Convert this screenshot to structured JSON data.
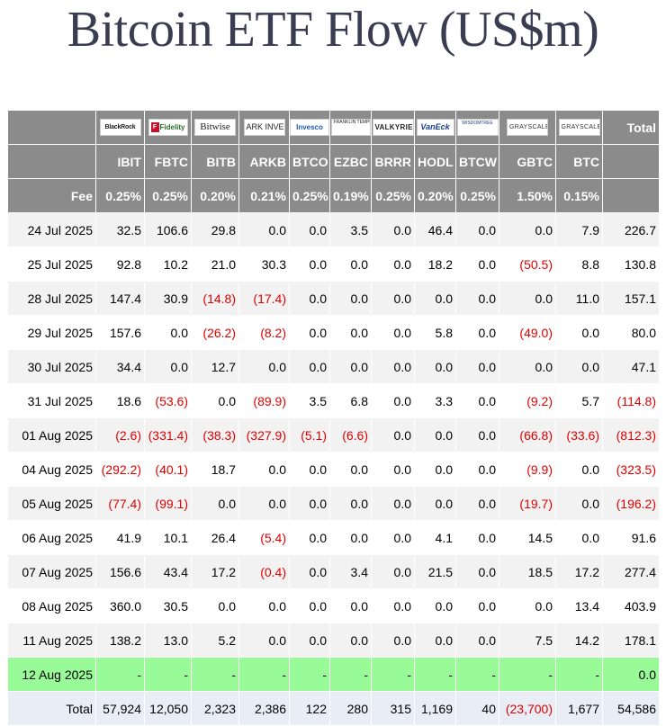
{
  "title": "Bitcoin ETF Flow (US$m)",
  "header": {
    "total_label": "Total",
    "fee_label": "Fee",
    "issuers": [
      {
        "icon": "blackrock-logo",
        "text": "BlackRock"
      },
      {
        "icon": "fidelity-logo",
        "text": "Fidelity"
      },
      {
        "icon": "bitwise-logo",
        "text": "Bitwise"
      },
      {
        "icon": "ark-invest-logo",
        "text": "ARK INVEST"
      },
      {
        "icon": "invesco-logo",
        "text": "Invesco"
      },
      {
        "icon": "franklin-templeton-logo",
        "text": "FRANKLIN TEMPLETON"
      },
      {
        "icon": "valkyrie-logo",
        "text": "VALKYRIE"
      },
      {
        "icon": "vaneck-logo",
        "text": "VanEck"
      },
      {
        "icon": "wisdomtree-logo",
        "text": "WISDOMTREE"
      },
      {
        "icon": "grayscale-logo",
        "text": "GRAYSCALE"
      },
      {
        "icon": "grayscale-logo",
        "text": "GRAYSCALE"
      }
    ],
    "tickers": [
      "IBIT",
      "FBTC",
      "BITB",
      "ARKB",
      "BTCO",
      "EZBC",
      "BRRR",
      "HODL",
      "BTCW",
      "GBTC",
      "BTC"
    ],
    "fees": [
      "0.25%",
      "0.25%",
      "0.20%",
      "0.21%",
      "0.25%",
      "0.19%",
      "0.25%",
      "0.20%",
      "0.25%",
      "1.50%",
      "0.15%"
    ]
  },
  "rows": [
    {
      "date": "24 Jul 2025",
      "values": [
        "32.5",
        "106.6",
        "29.8",
        "0.0",
        "0.0",
        "3.5",
        "0.0",
        "46.4",
        "0.0",
        "0.0",
        "7.9"
      ],
      "total": "226.7"
    },
    {
      "date": "25 Jul 2025",
      "values": [
        "92.8",
        "10.2",
        "21.0",
        "30.3",
        "0.0",
        "0.0",
        "0.0",
        "18.2",
        "0.0",
        "(50.5)",
        "8.8"
      ],
      "total": "130.8"
    },
    {
      "date": "28 Jul 2025",
      "values": [
        "147.4",
        "30.9",
        "(14.8)",
        "(17.4)",
        "0.0",
        "0.0",
        "0.0",
        "0.0",
        "0.0",
        "0.0",
        "11.0"
      ],
      "total": "157.1"
    },
    {
      "date": "29 Jul 2025",
      "values": [
        "157.6",
        "0.0",
        "(26.2)",
        "(8.2)",
        "0.0",
        "0.0",
        "0.0",
        "5.8",
        "0.0",
        "(49.0)",
        "0.0"
      ],
      "total": "80.0"
    },
    {
      "date": "30 Jul 2025",
      "values": [
        "34.4",
        "0.0",
        "12.7",
        "0.0",
        "0.0",
        "0.0",
        "0.0",
        "0.0",
        "0.0",
        "0.0",
        "0.0"
      ],
      "total": "47.1"
    },
    {
      "date": "31 Jul 2025",
      "values": [
        "18.6",
        "(53.6)",
        "0.0",
        "(89.9)",
        "3.5",
        "6.8",
        "0.0",
        "3.3",
        "0.0",
        "(9.2)",
        "5.7"
      ],
      "total": "(114.8)"
    },
    {
      "date": "01 Aug 2025",
      "values": [
        "(2.6)",
        "(331.4)",
        "(38.3)",
        "(327.9)",
        "(5.1)",
        "(6.6)",
        "0.0",
        "0.0",
        "0.0",
        "(66.8)",
        "(33.6)"
      ],
      "total": "(812.3)"
    },
    {
      "date": "04 Aug 2025",
      "values": [
        "(292.2)",
        "(40.1)",
        "18.7",
        "0.0",
        "0.0",
        "0.0",
        "0.0",
        "0.0",
        "0.0",
        "(9.9)",
        "0.0"
      ],
      "total": "(323.5)"
    },
    {
      "date": "05 Aug 2025",
      "values": [
        "(77.4)",
        "(99.1)",
        "0.0",
        "0.0",
        "0.0",
        "0.0",
        "0.0",
        "0.0",
        "0.0",
        "(19.7)",
        "0.0"
      ],
      "total": "(196.2)"
    },
    {
      "date": "06 Aug 2025",
      "values": [
        "41.9",
        "10.1",
        "26.4",
        "(5.4)",
        "0.0",
        "0.0",
        "0.0",
        "4.1",
        "0.0",
        "14.5",
        "0.0"
      ],
      "total": "91.6"
    },
    {
      "date": "07 Aug 2025",
      "values": [
        "156.6",
        "43.4",
        "17.2",
        "(0.4)",
        "0.0",
        "3.4",
        "0.0",
        "21.5",
        "0.0",
        "18.5",
        "17.2"
      ],
      "total": "277.4"
    },
    {
      "date": "08 Aug 2025",
      "values": [
        "360.0",
        "30.5",
        "0.0",
        "0.0",
        "0.0",
        "0.0",
        "0.0",
        "0.0",
        "0.0",
        "0.0",
        "13.4"
      ],
      "total": "403.9"
    },
    {
      "date": "11 Aug 2025",
      "values": [
        "138.2",
        "13.0",
        "5.2",
        "0.0",
        "0.0",
        "0.0",
        "0.0",
        "0.0",
        "0.0",
        "7.5",
        "14.2"
      ],
      "total": "178.1"
    },
    {
      "date": "12 Aug 2025",
      "values": [
        "-",
        "-",
        "-",
        "-",
        "-",
        "-",
        "-",
        "-",
        "-",
        "-",
        "-"
      ],
      "total": "0.0",
      "pending": true
    }
  ],
  "totals": {
    "label": "Total",
    "values": [
      "57,924",
      "12,050",
      "2,323",
      "2,386",
      "122",
      "280",
      "315",
      "1,169",
      "40",
      "(23,700)",
      "1,677"
    ],
    "total": "54,586"
  },
  "colors": {
    "header_bg": "#8b8b8b",
    "negative": "#e00000",
    "pending_row": "#98fb98",
    "title": "#3a3c52"
  }
}
